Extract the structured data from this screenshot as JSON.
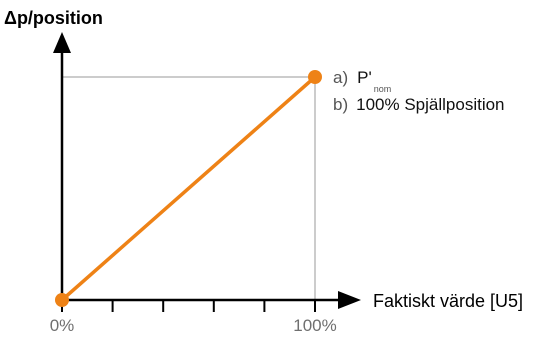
{
  "chart_data": {
    "type": "line",
    "ylabel": "Δp/position",
    "xlabel": "Faktiskt värde [U5]",
    "x_ticks": [
      "0%",
      "100%"
    ],
    "xlim": [
      0,
      100
    ],
    "ylim": [
      0,
      100
    ],
    "series": [
      {
        "values": [
          {
            "x": 0,
            "y": 0
          },
          {
            "x": 100,
            "y": 100
          }
        ]
      }
    ],
    "annotations": {
      "a_prefix": "a)",
      "a_main": "P'",
      "a_sub": "nom",
      "b_prefix": "b)",
      "b_text": "100% Spjällposition"
    },
    "colors": {
      "line": "#EE8216",
      "axis": "#000000",
      "guide": "#9a9a9a"
    }
  }
}
